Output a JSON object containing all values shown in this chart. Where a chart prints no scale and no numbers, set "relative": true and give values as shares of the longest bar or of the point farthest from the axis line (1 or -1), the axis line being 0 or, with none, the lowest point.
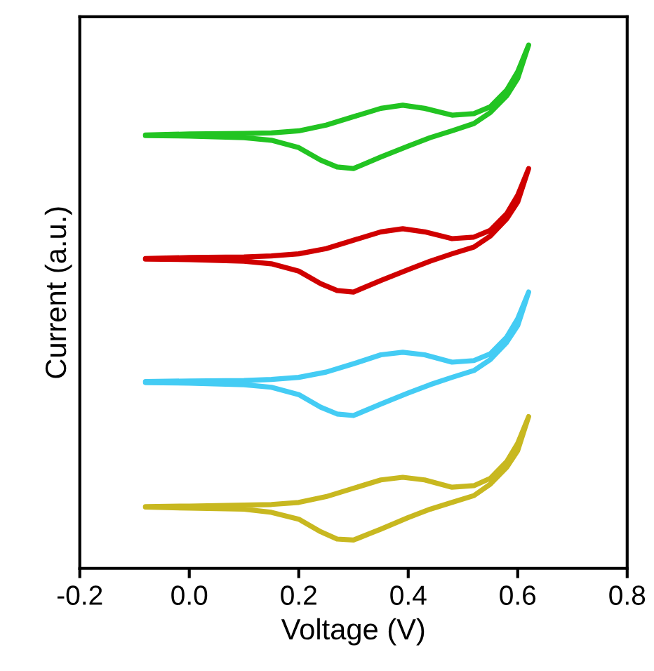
{
  "chart_data": {
    "type": "line",
    "relative": true,
    "xlabel": "Voltage (V)",
    "ylabel": "Current (a.u.)",
    "xlim": [
      -0.2,
      0.8
    ],
    "xticks": [
      {
        "value": -0.2,
        "label": "-0.2"
      },
      {
        "value": 0,
        "label": "0.0"
      },
      {
        "value": 0.2,
        "label": "0.2"
      },
      {
        "value": 0.4,
        "label": "0.4"
      },
      {
        "value": 0.6,
        "label": "0.6"
      },
      {
        "value": 0.8,
        "label": "0.8"
      }
    ],
    "tick_labels": "x",
    "grid": false,
    "legend": false,
    "marker": "none",
    "line_style": "solid",
    "x": [
      -0.08,
      0.0,
      0.1,
      0.15,
      0.2,
      0.25,
      0.3,
      0.35,
      0.39,
      0.43,
      0.48,
      0.52,
      0.55,
      0.58,
      0.6,
      0.62,
      0.6,
      0.58,
      0.55,
      0.52,
      0.48,
      0.44,
      0.4,
      0.35,
      0.3,
      0.27,
      0.24,
      0.2,
      0.15,
      0.1,
      0.0,
      -0.08
    ],
    "series": [
      {
        "color": "#22c422",
        "values": [
          0.828,
          0.83,
          0.831,
          0.832,
          0.836,
          0.847,
          0.863,
          0.879,
          0.885,
          0.879,
          0.866,
          0.869,
          0.882,
          0.914,
          0.949,
          1.0,
          0.936,
          0.903,
          0.871,
          0.85,
          0.836,
          0.823,
          0.807,
          0.786,
          0.764,
          0.767,
          0.78,
          0.804,
          0.818,
          0.823,
          0.826,
          0.827
        ]
      },
      {
        "color": "#d00000",
        "values": [
          0.592,
          0.594,
          0.595,
          0.597,
          0.601,
          0.611,
          0.627,
          0.643,
          0.649,
          0.643,
          0.63,
          0.633,
          0.646,
          0.678,
          0.713,
          0.764,
          0.7,
          0.668,
          0.635,
          0.614,
          0.601,
          0.587,
          0.571,
          0.55,
          0.528,
          0.531,
          0.544,
          0.568,
          0.582,
          0.587,
          0.59,
          0.591
        ]
      },
      {
        "color": "#44ccf4",
        "values": [
          0.357,
          0.358,
          0.359,
          0.361,
          0.365,
          0.375,
          0.391,
          0.408,
          0.413,
          0.408,
          0.394,
          0.397,
          0.41,
          0.442,
          0.477,
          0.528,
          0.464,
          0.432,
          0.399,
          0.378,
          0.365,
          0.351,
          0.335,
          0.314,
          0.292,
          0.295,
          0.308,
          0.332,
          0.346,
          0.351,
          0.354,
          0.355
        ]
      },
      {
        "color": "#c8b820",
        "values": [
          0.118,
          0.119,
          0.121,
          0.122,
          0.126,
          0.137,
          0.153,
          0.169,
          0.174,
          0.169,
          0.155,
          0.158,
          0.172,
          0.204,
          0.239,
          0.29,
          0.225,
          0.193,
          0.161,
          0.139,
          0.126,
          0.113,
          0.097,
          0.075,
          0.054,
          0.056,
          0.07,
          0.094,
          0.107,
          0.113,
          0.115,
          0.117
        ]
      }
    ]
  }
}
